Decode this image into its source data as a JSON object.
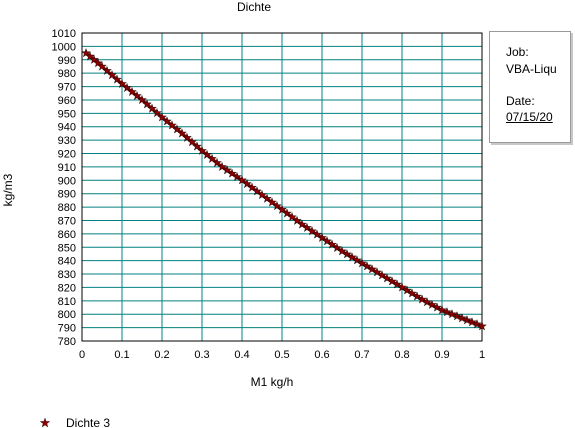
{
  "chart_data": {
    "type": "scatter",
    "title": "Dichte",
    "xlabel": "M1  kg/h",
    "ylabel": "kg/m3",
    "xlim": [
      0,
      1
    ],
    "ylim": [
      780,
      1010
    ],
    "x_ticks": [
      "0",
      "0.1",
      "0.2",
      "0.3",
      "0.4",
      "0.5",
      "0.6",
      "0.7",
      "0.8",
      "0.9",
      "1"
    ],
    "y_ticks": [
      "780",
      "790",
      "800",
      "810",
      "820",
      "830",
      "840",
      "850",
      "860",
      "870",
      "880",
      "890",
      "900",
      "910",
      "920",
      "930",
      "940",
      "950",
      "960",
      "970",
      "980",
      "990",
      "1000",
      "1010"
    ],
    "grid": true,
    "legend_position": "bottom-left",
    "series": [
      {
        "name": "Dichte 3",
        "color": "#8b0000",
        "marker": "star",
        "x": [
          0.01,
          0.05,
          0.1,
          0.15,
          0.2,
          0.25,
          0.3,
          0.35,
          0.4,
          0.45,
          0.5,
          0.55,
          0.6,
          0.65,
          0.7,
          0.75,
          0.8,
          0.85,
          0.9,
          0.95,
          1.0
        ],
        "y": [
          995,
          985,
          972,
          960,
          947,
          935,
          922,
          910,
          900,
          889,
          878,
          867,
          857,
          847,
          838,
          829,
          820,
          811,
          803,
          797,
          791
        ]
      }
    ]
  },
  "info_box": {
    "job_label": "Job:",
    "job_value": "VBA-Liqu",
    "date_label": "Date:",
    "date_value": "07/15/20"
  }
}
